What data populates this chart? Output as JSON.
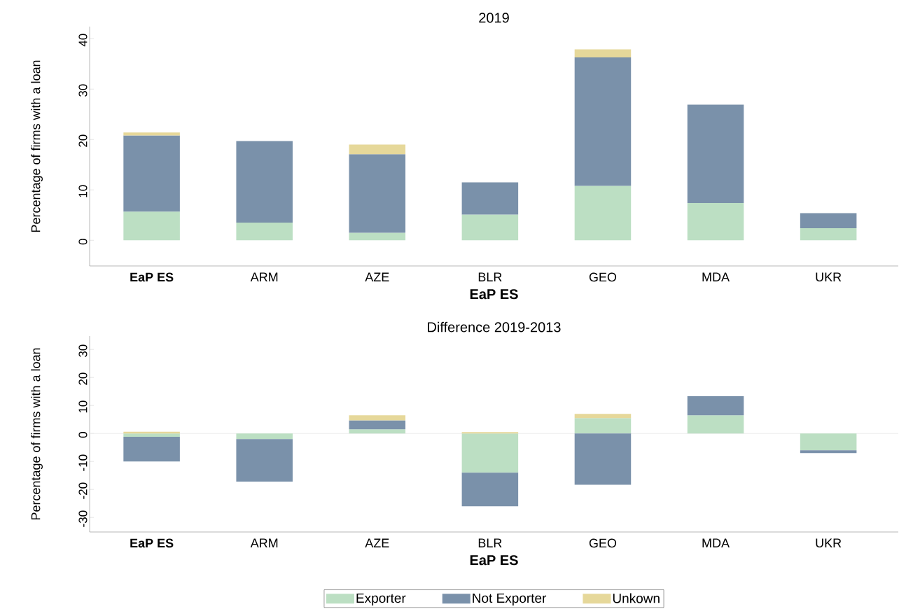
{
  "chart_data": [
    {
      "type": "bar",
      "title": "2019",
      "xlabel": "EaP ES",
      "ylabel": "Percentage of firms with a loan",
      "stacked": true,
      "legend": false,
      "categories": [
        "**EaP ES**",
        "ARM",
        "AZE",
        "BLR",
        "GEO",
        "MDA",
        "UKR"
      ],
      "ylim": [
        -5.1,
        42.4
      ],
      "yticks": [
        0,
        10,
        20,
        30,
        40
      ],
      "series": [
        {
          "color": "#bcdfc3",
          "values": [
            5.7,
            3.5,
            1.5,
            5.1,
            10.8,
            7.4,
            2.4
          ]
        },
        {
          "color": "#7a91aa",
          "values": [
            15.1,
            16.2,
            15.6,
            6.4,
            25.5,
            19.5,
            3.0
          ]
        },
        {
          "color": "#e6d89a",
          "values": [
            0.6,
            null,
            1.9,
            null,
            1.6,
            null,
            null
          ]
        }
      ]
    },
    {
      "type": "bar",
      "title": "Difference 2019-2013",
      "xlabel": "EaP ES",
      "ylabel": "Percentage of firms with a loan",
      "stacked": true,
      "legend": "bottom",
      "categories": [
        "**EaP ES**",
        "ARM",
        "AZE",
        "BLR",
        "GEO",
        "MDA",
        "UKR"
      ],
      "ylim": [
        -35.2,
        34.8
      ],
      "yticks": [
        -30,
        -20,
        -10,
        0,
        10,
        20,
        30
      ],
      "ref_lines": [
        {
          "axis": "y",
          "value": 0,
          "color": "#ececec"
        }
      ],
      "series": [
        {
          "name": "Exporter",
          "color": "#bcdfc3",
          "values": [
            -1.2,
            -2.0,
            1.5,
            -14.0,
            5.5,
            6.5,
            -6.0
          ]
        },
        {
          "name": "Not Exporter",
          "color": "#7a91aa",
          "values": [
            -8.8,
            -15.2,
            3.2,
            -12.0,
            -18.3,
            6.8,
            -1.0
          ]
        },
        {
          "name": "Unkown",
          "color": "#e6d89a",
          "values": [
            0.6,
            null,
            1.8,
            0.5,
            1.5,
            null,
            null
          ]
        }
      ]
    }
  ]
}
